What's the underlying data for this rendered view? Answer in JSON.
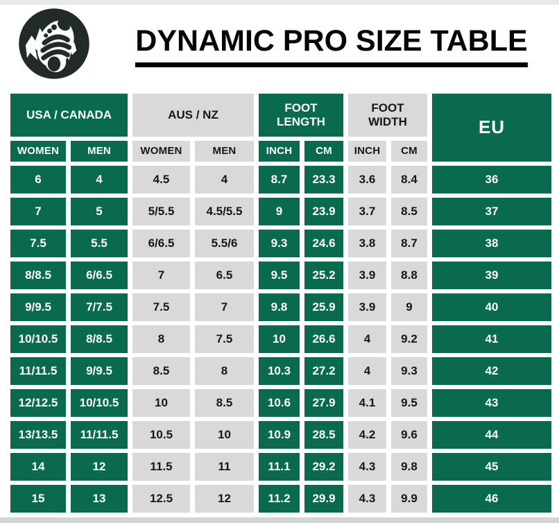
{
  "header": {
    "title": "DYNAMIC PRO SIZE TABLE",
    "logo_icon": "footprint-mountain-logo"
  },
  "colors": {
    "brand_green": "#0A6A4E",
    "cell_gray": "#D9D9D9",
    "logo_dark": "#232B29",
    "title_black": "#050505"
  },
  "chart_data": {
    "type": "table",
    "title": "DYNAMIC PRO SIZE TABLE",
    "column_groups": [
      {
        "label": "USA / CANADA",
        "style": "green",
        "span": 2
      },
      {
        "label": "AUS / NZ",
        "style": "gray",
        "span": 2
      },
      {
        "label": "FOOT LENGTH",
        "style": "green",
        "span": 2
      },
      {
        "label": "FOOT WIDTH",
        "style": "gray",
        "span": 2
      },
      {
        "label": "EU",
        "style": "green",
        "span": 1
      }
    ],
    "sub_headers": [
      {
        "label": "WOMEN",
        "style": "green"
      },
      {
        "label": "MEN",
        "style": "green"
      },
      {
        "label": "WOMEN",
        "style": "gray"
      },
      {
        "label": "MEN",
        "style": "gray"
      },
      {
        "label": "INCH",
        "style": "green"
      },
      {
        "label": "CM",
        "style": "green"
      },
      {
        "label": "INCH",
        "style": "gray"
      },
      {
        "label": "CM",
        "style": "gray"
      }
    ],
    "column_styles": [
      "green",
      "green",
      "gray",
      "gray",
      "green",
      "green",
      "gray",
      "gray",
      "green"
    ],
    "rows": [
      [
        "6",
        "4",
        "4.5",
        "4",
        "8.7",
        "23.3",
        "3.6",
        "8.4",
        "36"
      ],
      [
        "7",
        "5",
        "5/5.5",
        "4.5/5.5",
        "9",
        "23.9",
        "3.7",
        "8.5",
        "37"
      ],
      [
        "7.5",
        "5.5",
        "6/6.5",
        "5.5/6",
        "9.3",
        "24.6",
        "3.8",
        "8.7",
        "38"
      ],
      [
        "8/8.5",
        "6/6.5",
        "7",
        "6.5",
        "9.5",
        "25.2",
        "3.9",
        "8.8",
        "39"
      ],
      [
        "9/9.5",
        "7/7.5",
        "7.5",
        "7",
        "9.8",
        "25.9",
        "3.9",
        "9",
        "40"
      ],
      [
        "10/10.5",
        "8/8.5",
        "8",
        "7.5",
        "10",
        "26.6",
        "4",
        "9.2",
        "41"
      ],
      [
        "11/11.5",
        "9/9.5",
        "8.5",
        "8",
        "10.3",
        "27.2",
        "4",
        "9.3",
        "42"
      ],
      [
        "12/12.5",
        "10/10.5",
        "10",
        "8.5",
        "10.6",
        "27.9",
        "4.1",
        "9.5",
        "43"
      ],
      [
        "13/13.5",
        "11/11.5",
        "10.5",
        "10",
        "10.9",
        "28.5",
        "4.2",
        "9.6",
        "44"
      ],
      [
        "14",
        "12",
        "11.5",
        "11",
        "11.1",
        "29.2",
        "4.3",
        "9.8",
        "45"
      ],
      [
        "15",
        "13",
        "12.5",
        "12",
        "11.2",
        "29.9",
        "4.3",
        "9.9",
        "46"
      ]
    ]
  }
}
